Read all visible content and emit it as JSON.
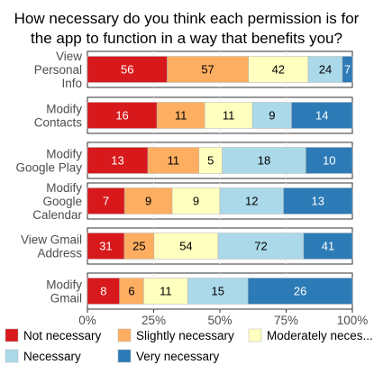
{
  "chart_data": {
    "type": "bar",
    "orientation": "horizontal",
    "stacked": "percent",
    "title": "How necessary do you think each permission is for the app to function in a way that benefits you?",
    "title_lines": [
      "How necessary do you think each permission is for",
      "the app to function in a way that benefits you?"
    ],
    "categories": [
      [
        "View",
        "Personal",
        "Info"
      ],
      [
        "Modify",
        "Contacts"
      ],
      [
        "Modify",
        "Google Play"
      ],
      [
        "Modify",
        "Google",
        "Calendar"
      ],
      [
        "View Gmail",
        "Address"
      ],
      [
        "Modify",
        "Gmail"
      ]
    ],
    "series": [
      {
        "name": "Not necessary",
        "color": "#d7191c",
        "text_color": "#ffffff",
        "values": [
          56,
          16,
          13,
          7,
          31,
          8
        ]
      },
      {
        "name": "Slightly necessary",
        "color": "#fdae61",
        "text_color": "#000000",
        "values": [
          57,
          11,
          11,
          9,
          25,
          6
        ]
      },
      {
        "name": "Moderately neces...",
        "color": "#ffffbf",
        "text_color": "#000000",
        "values": [
          42,
          11,
          5,
          9,
          54,
          11
        ]
      },
      {
        "name": "Necessary",
        "color": "#abd9e9",
        "text_color": "#000000",
        "values": [
          24,
          9,
          18,
          12,
          72,
          15
        ]
      },
      {
        "name": "Very necessary",
        "color": "#2c7bb6",
        "text_color": "#ffffff",
        "values": [
          7,
          14,
          10,
          13,
          41,
          26
        ]
      }
    ],
    "x_ticks": [
      "0%",
      "25%",
      "50%",
      "75%",
      "100%"
    ],
    "xlim": [
      0,
      1
    ],
    "grid": true,
    "legend_position": "bottom"
  }
}
